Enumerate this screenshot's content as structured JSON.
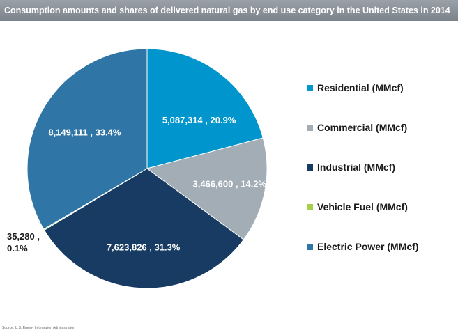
{
  "chart_data": {
    "type": "pie",
    "title": "Consumption amounts and shares of delivered natural gas by end use category in the United States in 2014",
    "series": [
      {
        "name": "Residential (MMcf)",
        "value": 5087314,
        "label": "5,087,314 , 20.9%",
        "color": "#0095cc",
        "label_color": "#ffffff"
      },
      {
        "name": "Commercial (MMcf)",
        "value": 3466600,
        "label": "3,466,600 , 14.2%",
        "color": "#a3adb6",
        "label_color": "#ffffff"
      },
      {
        "name": "Industrial (MMcf)",
        "value": 7623826,
        "label": "7,623,826 , 31.3%",
        "color": "#173b62",
        "label_color": "#ffffff"
      },
      {
        "name": "Vehicle Fuel (MMcf)",
        "value": 35280,
        "label": "35,280 ,\n0.1%",
        "color": "#a5d04a",
        "label_color": "#1a1a1a"
      },
      {
        "name": "Electric Power (MMcf)",
        "value": 8149111,
        "label": "8,149,111 , 33.4%",
        "color": "#2f76a6",
        "label_color": "#ffffff"
      }
    ],
    "legend_position": "right"
  },
  "source": "Source: U.S. Energy Information Administration"
}
